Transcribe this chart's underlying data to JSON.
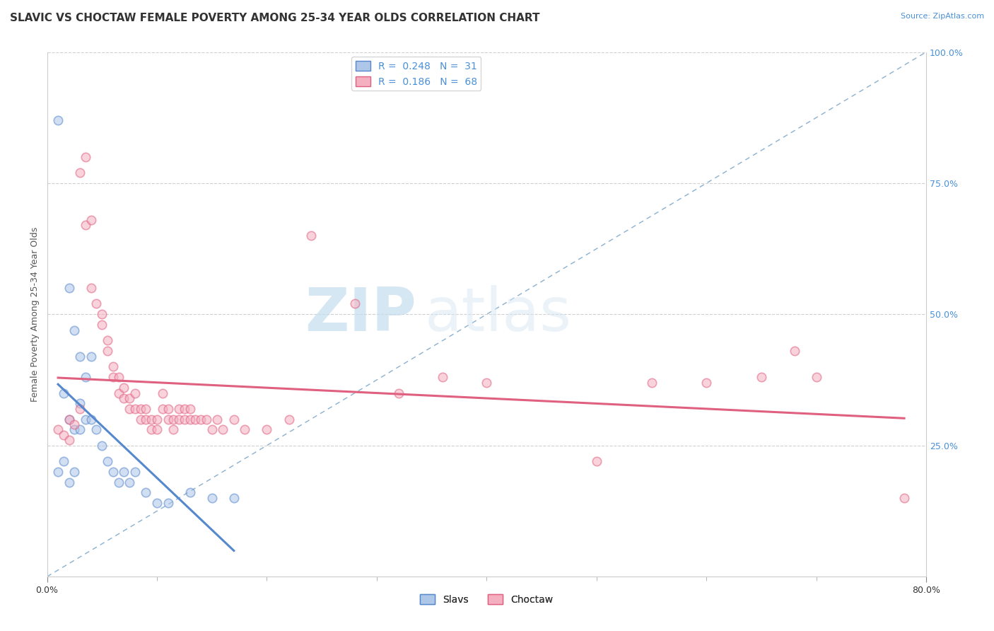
{
  "title": "SLAVIC VS CHOCTAW FEMALE POVERTY AMONG 25-34 YEAR OLDS CORRELATION CHART",
  "source": "Source: ZipAtlas.com",
  "ylabel": "Female Poverty Among 25-34 Year Olds",
  "xlabel": "",
  "xlim": [
    0.0,
    80.0
  ],
  "ylim": [
    0.0,
    100.0
  ],
  "xticks": [
    0.0,
    80.0
  ],
  "xtick_labels": [
    "0.0%",
    "80.0%"
  ],
  "ytick_labels": [
    "",
    "25.0%",
    "50.0%",
    "75.0%",
    "100.0%"
  ],
  "yticks": [
    0.0,
    25.0,
    50.0,
    75.0,
    100.0
  ],
  "right_ytick_labels": [
    "25.0%",
    "50.0%",
    "75.0%",
    "100.0%"
  ],
  "right_yticks": [
    25.0,
    50.0,
    75.0,
    100.0
  ],
  "legend_r_slavic": "0.248",
  "legend_n_slavic": "31",
  "legend_r_choctaw": "0.186",
  "legend_n_choctaw": "68",
  "slavic_color": "#aec6e8",
  "choctaw_color": "#f4afc0",
  "slavic_scatter": [
    [
      1.0,
      87.0
    ],
    [
      2.0,
      55.0
    ],
    [
      3.0,
      42.0
    ],
    [
      2.5,
      47.0
    ],
    [
      4.0,
      42.0
    ],
    [
      3.5,
      38.0
    ],
    [
      1.5,
      35.0
    ],
    [
      2.0,
      30.0
    ],
    [
      2.5,
      28.0
    ],
    [
      3.0,
      33.0
    ],
    [
      1.0,
      20.0
    ],
    [
      1.5,
      22.0
    ],
    [
      2.0,
      18.0
    ],
    [
      2.5,
      20.0
    ],
    [
      3.0,
      28.0
    ],
    [
      3.5,
      30.0
    ],
    [
      4.0,
      30.0
    ],
    [
      4.5,
      28.0
    ],
    [
      5.0,
      25.0
    ],
    [
      5.5,
      22.0
    ],
    [
      6.0,
      20.0
    ],
    [
      6.5,
      18.0
    ],
    [
      7.0,
      20.0
    ],
    [
      7.5,
      18.0
    ],
    [
      8.0,
      20.0
    ],
    [
      9.0,
      16.0
    ],
    [
      10.0,
      14.0
    ],
    [
      11.0,
      14.0
    ],
    [
      13.0,
      16.0
    ],
    [
      15.0,
      15.0
    ],
    [
      17.0,
      15.0
    ]
  ],
  "choctaw_scatter": [
    [
      1.0,
      28.0
    ],
    [
      1.5,
      27.0
    ],
    [
      2.0,
      30.0
    ],
    [
      2.0,
      26.0
    ],
    [
      2.5,
      29.0
    ],
    [
      3.0,
      32.0
    ],
    [
      3.0,
      77.0
    ],
    [
      3.5,
      80.0
    ],
    [
      3.5,
      67.0
    ],
    [
      4.0,
      68.0
    ],
    [
      4.0,
      55.0
    ],
    [
      4.5,
      52.0
    ],
    [
      5.0,
      50.0
    ],
    [
      5.0,
      48.0
    ],
    [
      5.5,
      45.0
    ],
    [
      5.5,
      43.0
    ],
    [
      6.0,
      40.0
    ],
    [
      6.0,
      38.0
    ],
    [
      6.5,
      38.0
    ],
    [
      6.5,
      35.0
    ],
    [
      7.0,
      36.0
    ],
    [
      7.0,
      34.0
    ],
    [
      7.5,
      34.0
    ],
    [
      7.5,
      32.0
    ],
    [
      8.0,
      35.0
    ],
    [
      8.0,
      32.0
    ],
    [
      8.5,
      32.0
    ],
    [
      8.5,
      30.0
    ],
    [
      9.0,
      32.0
    ],
    [
      9.0,
      30.0
    ],
    [
      9.5,
      30.0
    ],
    [
      9.5,
      28.0
    ],
    [
      10.0,
      30.0
    ],
    [
      10.0,
      28.0
    ],
    [
      10.5,
      35.0
    ],
    [
      10.5,
      32.0
    ],
    [
      11.0,
      32.0
    ],
    [
      11.0,
      30.0
    ],
    [
      11.5,
      30.0
    ],
    [
      11.5,
      28.0
    ],
    [
      12.0,
      32.0
    ],
    [
      12.0,
      30.0
    ],
    [
      12.5,
      32.0
    ],
    [
      12.5,
      30.0
    ],
    [
      13.0,
      32.0
    ],
    [
      13.0,
      30.0
    ],
    [
      13.5,
      30.0
    ],
    [
      14.0,
      30.0
    ],
    [
      14.5,
      30.0
    ],
    [
      15.0,
      28.0
    ],
    [
      15.5,
      30.0
    ],
    [
      16.0,
      28.0
    ],
    [
      17.0,
      30.0
    ],
    [
      18.0,
      28.0
    ],
    [
      20.0,
      28.0
    ],
    [
      22.0,
      30.0
    ],
    [
      24.0,
      65.0
    ],
    [
      28.0,
      52.0
    ],
    [
      32.0,
      35.0
    ],
    [
      36.0,
      38.0
    ],
    [
      40.0,
      37.0
    ],
    [
      50.0,
      22.0
    ],
    [
      55.0,
      37.0
    ],
    [
      60.0,
      37.0
    ],
    [
      65.0,
      38.0
    ],
    [
      68.0,
      43.0
    ],
    [
      70.0,
      38.0
    ],
    [
      78.0,
      15.0
    ]
  ],
  "watermark_zip": "ZIP",
  "watermark_atlas": "atlas",
  "background_color": "#ffffff",
  "grid_color": "#d0d0d0",
  "title_fontsize": 11,
  "axis_label_fontsize": 9,
  "tick_fontsize": 9,
  "scatter_size": 80,
  "scatter_alpha": 0.55,
  "slavic_edge_color": "#5588cc",
  "choctaw_edge_color": "#e06080",
  "diagonal_color": "#8ab0d0"
}
